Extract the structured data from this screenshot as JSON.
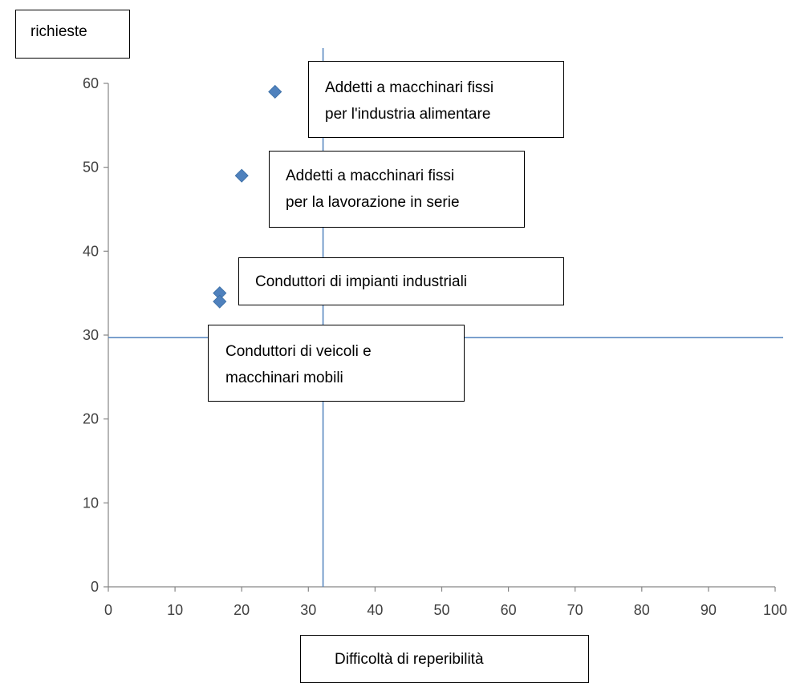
{
  "chart_data": {
    "type": "scatter",
    "ylabel": "richieste",
    "xlabel": "Difficoltà di reperibilità",
    "xlim": [
      0,
      100
    ],
    "ylim": [
      0,
      60
    ],
    "x_ticks": [
      0,
      10,
      20,
      30,
      40,
      50,
      60,
      70,
      80,
      90,
      100
    ],
    "y_ticks": [
      0,
      10,
      20,
      30,
      40,
      50,
      60
    ],
    "series": [
      {
        "points": [
          {
            "x": 25,
            "y": 59
          },
          {
            "x": 20,
            "y": 49
          },
          {
            "x": 16.7,
            "y": 35
          },
          {
            "x": 16.7,
            "y": 34
          }
        ]
      }
    ],
    "reference_lines": {
      "vertical_x": 32.2,
      "horizontal_y": 29.7
    },
    "annotations": [
      {
        "lines": [
          "Addetti a macchinari fissi",
          "per l'industria alimentare"
        ]
      },
      {
        "lines": [
          "Addetti a macchinari fissi",
          "per la lavorazione in serie"
        ]
      },
      {
        "lines": [
          "Conduttori di impianti industriali"
        ]
      },
      {
        "lines": [
          "Conduttori di veicoli e",
          "macchinari mobili"
        ]
      }
    ],
    "grid": false,
    "legend": "none",
    "colors": {
      "marker": "#4F81BD",
      "reference_line": "#4F81BD",
      "axis": "#868686"
    }
  }
}
